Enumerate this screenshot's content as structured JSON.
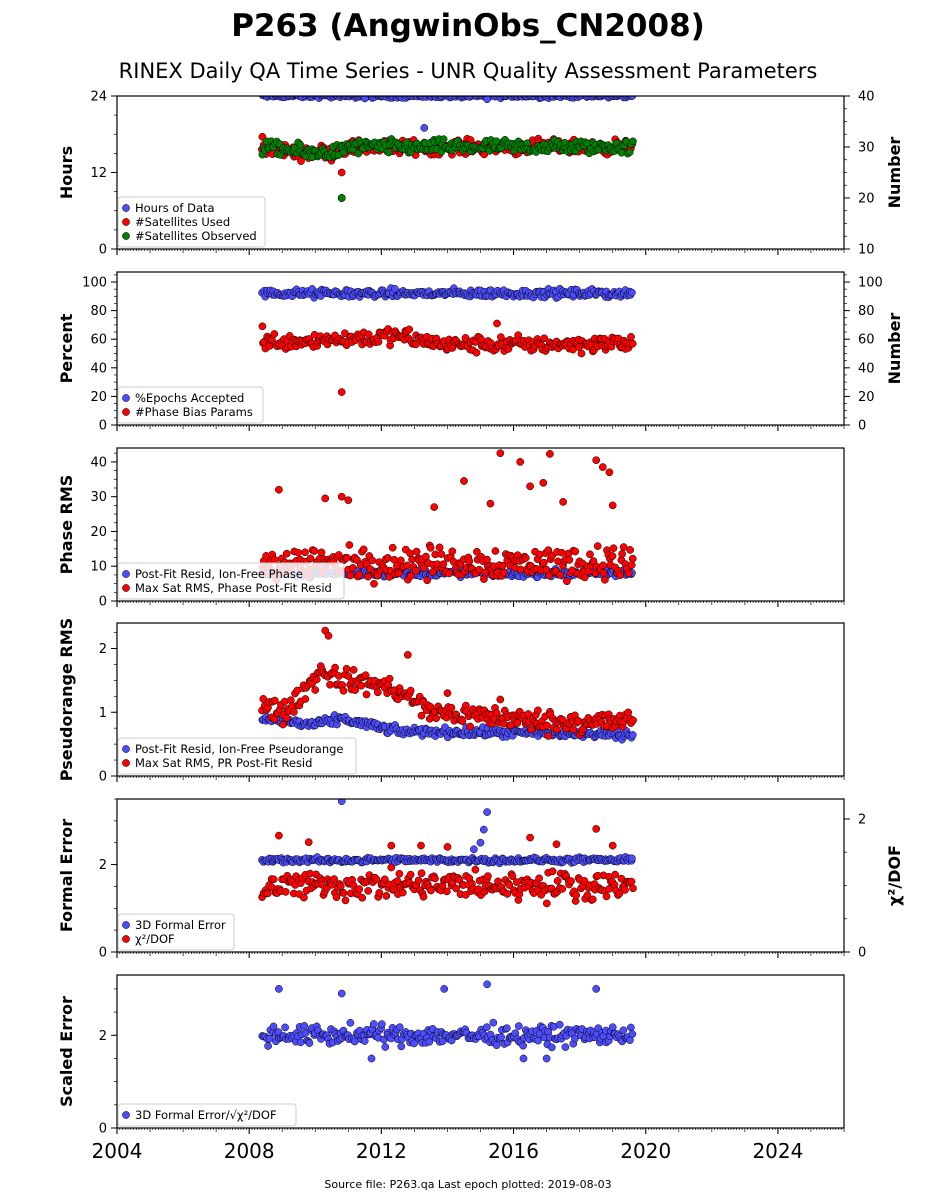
{
  "header": {
    "title": "P263 (AngwinObs_CN2008)",
    "subtitle": "RINEX Daily QA Time Series - UNR Quality Assessment Parameters"
  },
  "footer": {
    "source_text": "Source file: P263.qa Last epoch plotted: 2019-08-03"
  },
  "colors": {
    "blue": "#4d4dff",
    "red": "#ff0000",
    "green": "#008000",
    "edge": "#000000"
  },
  "chart_data": [
    {
      "type": "scatter",
      "panel": 1,
      "ylabel": "Hours",
      "ylim": [
        0,
        24
      ],
      "yticks": [
        0,
        12,
        24
      ],
      "right_ylabel": "Number",
      "right_ylim": [
        10,
        40
      ],
      "right_yticks": [
        10,
        20,
        30,
        40
      ],
      "legend_position": "lower-left",
      "series": [
        {
          "name": "Hours of Data",
          "axis": "left",
          "color": "blue",
          "base": 24,
          "spread": 0.25,
          "outliers": [
            [
              2010.8,
              8.0
            ],
            [
              2013.3,
              19.0
            ],
            [
              2015.2,
              23.5
            ],
            [
              2011.5,
              23.6
            ]
          ]
        },
        {
          "name": "#Satellites Used",
          "axis": "right",
          "color": "red",
          "base": 30,
          "spread": 1.2,
          "trend": [
            [
              2008.4,
              30
            ],
            [
              2009.6,
              29
            ],
            [
              2010.6,
              29
            ],
            [
              2011.0,
              30
            ],
            [
              2019.5,
              30
            ]
          ],
          "outliers": [
            [
              2008.4,
              32
            ],
            [
              2010.8,
              25
            ],
            [
              2010.8,
              20
            ]
          ]
        },
        {
          "name": "#Satellites Observed",
          "axis": "right",
          "color": "green",
          "base": 30,
          "spread": 1.2,
          "trend": [
            [
              2008.4,
              30
            ],
            [
              2009.6,
              29
            ],
            [
              2010.6,
              29
            ],
            [
              2011.0,
              30
            ],
            [
              2019.5,
              30
            ]
          ],
          "outliers": [
            [
              2010.8,
              20
            ],
            [
              2009.9,
              28
            ]
          ]
        }
      ]
    },
    {
      "type": "scatter",
      "panel": 2,
      "ylabel": "Percent",
      "ylim": [
        0,
        107
      ],
      "yticks": [
        0,
        20,
        40,
        60,
        80,
        100
      ],
      "right_ylabel": "Number",
      "right_ylim": [
        0,
        107
      ],
      "right_yticks": [
        0,
        20,
        40,
        60,
        80,
        100
      ],
      "legend_position": "lower-left",
      "series": [
        {
          "name": "%Epochs Accepted",
          "axis": "left",
          "color": "blue",
          "base": 92,
          "spread": 2.5
        },
        {
          "name": "#Phase Bias Params",
          "axis": "right",
          "color": "red",
          "base": 58,
          "spread": 5,
          "trend": [
            [
              2008.4,
              58
            ],
            [
              2010.5,
              60
            ],
            [
              2012.5,
              62
            ],
            [
              2014,
              56
            ],
            [
              2019.5,
              57
            ]
          ],
          "outliers": [
            [
              2010.8,
              23
            ],
            [
              2008.4,
              69
            ],
            [
              2015.5,
              71
            ]
          ]
        }
      ]
    },
    {
      "type": "scatter",
      "panel": 3,
      "ylabel": "Phase RMS",
      "ylim": [
        0,
        44
      ],
      "yticks": [
        0,
        10,
        20,
        30,
        40
      ],
      "legend_position": "lower-left",
      "series": [
        {
          "name": "Post-Fit Resid, Ion-Free Phase",
          "axis": "left",
          "color": "blue",
          "base": 8,
          "spread": 0.9
        },
        {
          "name": "Max Sat RMS, Phase Post-Fit Resid",
          "axis": "left",
          "color": "red",
          "base": 11,
          "spread": 4,
          "outliers": [
            [
              2015.6,
              42.5
            ],
            [
              2016.2,
              40
            ],
            [
              2017.1,
              42.3
            ],
            [
              2018.5,
              40.5
            ],
            [
              2018.7,
              38.5
            ],
            [
              2018.9,
              37
            ],
            [
              2014.5,
              34.5
            ],
            [
              2016.9,
              34
            ],
            [
              2016.5,
              33
            ],
            [
              2017.5,
              28.5
            ],
            [
              2008.9,
              32
            ],
            [
              2010.3,
              29.5
            ],
            [
              2010.8,
              30
            ],
            [
              2011.0,
              29
            ],
            [
              2015.3,
              28
            ],
            [
              2019.0,
              27.5
            ],
            [
              2013.6,
              27
            ]
          ]
        }
      ]
    },
    {
      "type": "scatter",
      "panel": 4,
      "ylabel": "Pseudorange RMS",
      "ylim": [
        0,
        2.4
      ],
      "yticks": [
        0,
        1,
        2
      ],
      "legend_position": "lower-left",
      "series": [
        {
          "name": "Post-Fit Resid, Ion-Free Pseudorange",
          "axis": "left",
          "color": "blue",
          "base": 0.7,
          "spread": 0.06,
          "trend": [
            [
              2008.4,
              0.9
            ],
            [
              2010.0,
              0.8
            ],
            [
              2010.8,
              0.9
            ],
            [
              2012.5,
              0.7
            ],
            [
              2019.5,
              0.65
            ]
          ]
        },
        {
          "name": "Max Sat RMS, PR Post-Fit Resid",
          "axis": "left",
          "color": "red",
          "base": 1.0,
          "spread": 0.15,
          "trend": [
            [
              2008.4,
              1.15
            ],
            [
              2009.0,
              0.95
            ],
            [
              2009.6,
              1.3
            ],
            [
              2010.2,
              1.65
            ],
            [
              2010.8,
              1.5
            ],
            [
              2011.8,
              1.45
            ],
            [
              2012.6,
              1.3
            ],
            [
              2013.5,
              1.0
            ],
            [
              2015.0,
              0.95
            ],
            [
              2017.0,
              0.85
            ],
            [
              2019.5,
              0.85
            ]
          ],
          "outliers": [
            [
              2010.3,
              2.28
            ],
            [
              2010.4,
              2.2
            ],
            [
              2012.8,
              1.9
            ],
            [
              2014.0,
              1.3
            ],
            [
              2015.6,
              1.2
            ]
          ]
        }
      ]
    },
    {
      "type": "scatter",
      "panel": 5,
      "ylabel": "Formal Error",
      "ylim": [
        0,
        3.5
      ],
      "yticks": [
        0,
        2
      ],
      "right_ylabel": "χ²/DOF",
      "right_ylim": [
        0,
        2.3
      ],
      "right_yticks": [
        0,
        2
      ],
      "legend_position": "lower-left",
      "series": [
        {
          "name": "3D Formal Error",
          "axis": "left",
          "color": "blue",
          "base": 2.1,
          "spread": 0.05,
          "outliers": [
            [
              2010.8,
              3.45
            ],
            [
              2015.2,
              3.2
            ],
            [
              2015.1,
              2.8
            ],
            [
              2015.0,
              2.5
            ],
            [
              2014.8,
              2.35
            ]
          ]
        },
        {
          "name": "χ²/DOF",
          "axis": "right",
          "color": "red",
          "base": 1.0,
          "spread": 0.18,
          "outliers": [
            [
              2008.9,
              1.75
            ],
            [
              2009.8,
              1.65
            ],
            [
              2012.3,
              1.6
            ],
            [
              2013.2,
              1.6
            ],
            [
              2014.0,
              1.58
            ],
            [
              2016.5,
              1.72
            ],
            [
              2017.3,
              1.62
            ],
            [
              2018.5,
              1.85
            ],
            [
              2019.0,
              1.6
            ]
          ]
        }
      ]
    },
    {
      "type": "scatter",
      "panel": 6,
      "ylabel": "Scaled Error",
      "ylim": [
        0,
        3.3
      ],
      "yticks": [
        0,
        2
      ],
      "legend_position": "lower-left",
      "series": [
        {
          "name": "3D Formal Error/√χ²/DOF",
          "axis": "left",
          "color": "blue",
          "base": 2.0,
          "spread": 0.18,
          "outliers": [
            [
              2008.9,
              3.0
            ],
            [
              2010.8,
              2.9
            ],
            [
              2013.9,
              3.0
            ],
            [
              2015.2,
              3.1
            ],
            [
              2018.5,
              3.0
            ],
            [
              2016.3,
              1.5
            ],
            [
              2011.7,
              1.5
            ],
            [
              2017.0,
              1.5
            ]
          ]
        }
      ]
    }
  ],
  "x_axis": {
    "xlim": [
      2004,
      2026
    ],
    "tick_labels": [
      "2004",
      "2008",
      "2012",
      "2016",
      "2020",
      "2024"
    ],
    "data_range": [
      2008.4,
      2019.6
    ]
  }
}
